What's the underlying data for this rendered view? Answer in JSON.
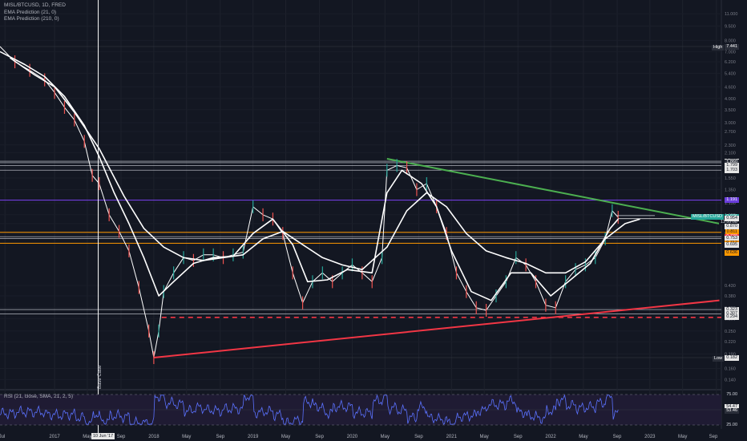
{
  "legend": {
    "symbol": "MISL/BTCUSD, 1D, FRED",
    "ema1": "EMA Prediction (21, 0)",
    "ema2": "EMA Prediction (210, 0)"
  },
  "rsi_legend": "RSI (21, close, SMA, 21, 2, 5)",
  "annotation": "Base Case",
  "crosshair_date": "10 Jun '17",
  "labels": {
    "high_side": "High",
    "low_side": "Low",
    "symbol_side": "MISL/BTCUSD",
    "countdown": "11:35:08"
  },
  "colors": {
    "background": "#131722",
    "price": "#ffffff",
    "green_trend": "#4caf50",
    "red_trend": "#f23645",
    "purple_level": "#7b42f5",
    "orange_level": "#ff9800",
    "rsi_line": "#5b72ff"
  },
  "chart_data": [
    {
      "type": "line",
      "scale": "log",
      "x_axis_ticks": [
        "Jul",
        "2017",
        "May",
        "Sep",
        "2018",
        "May",
        "Sep",
        "2019",
        "May",
        "Sep",
        "2020",
        "May",
        "Sep",
        "2021",
        "May",
        "Sep",
        "2022",
        "May",
        "Sep",
        "2023",
        "May",
        "Sep"
      ],
      "y_axis_ticks": [
        "12.500",
        "11.000",
        "9.500",
        "8.000",
        "7.000",
        "6.200",
        "5.400",
        "4.600",
        "4.000",
        "3.500",
        "3.000",
        "2.700",
        "2.300",
        "2.100",
        "1.750",
        "1.550",
        "1.350",
        "1.150",
        "1.000",
        "0.900",
        "0.800",
        "0.430",
        "0.380",
        "0.330",
        "0.290",
        "0.250",
        "0.220",
        "0.190",
        "0.160",
        "0.140"
      ],
      "price_tags": [
        {
          "label": "7.441",
          "style": "dark"
        },
        {
          "label": "1.895",
          "style": "white"
        },
        {
          "label": "1.860",
          "style": "dark"
        },
        {
          "label": "1.799",
          "style": "white"
        },
        {
          "label": "1.703",
          "style": "white"
        },
        {
          "label": "1.191",
          "style": "purple"
        },
        {
          "label": "0.976",
          "style": "teal"
        },
        {
          "label": "0.954",
          "style": "white"
        },
        {
          "label": "0.870",
          "style": "white"
        },
        {
          "label": "0.811",
          "style": "orange"
        },
        {
          "label": "0.770",
          "style": "red"
        },
        {
          "label": "0.753",
          "style": "white"
        },
        {
          "label": "0.712",
          "style": "orange"
        },
        {
          "label": "0.695",
          "style": "white"
        },
        {
          "label": "0.636",
          "style": "orange"
        },
        {
          "label": "0.323",
          "style": "white"
        },
        {
          "label": "0.307",
          "style": "white"
        },
        {
          "label": "0.294",
          "style": "white"
        },
        {
          "label": "0.182",
          "style": "white"
        }
      ],
      "series": [
        {
          "values": [
            [
              2016.45,
              7.44
            ],
            [
              2016.6,
              6.2
            ],
            [
              2016.75,
              5.6
            ],
            [
              2016.9,
              5.0
            ],
            [
              2017.0,
              4.3
            ],
            [
              2017.1,
              3.6
            ],
            [
              2017.2,
              3.1
            ],
            [
              2017.3,
              2.4
            ],
            [
              2017.38,
              1.6
            ],
            [
              2017.45,
              1.45
            ],
            [
              2017.55,
              1.0
            ],
            [
              2017.65,
              0.82
            ],
            [
              2017.75,
              0.65
            ],
            [
              2017.85,
              0.42
            ],
            [
              2017.95,
              0.25
            ],
            [
              2018.0,
              0.182
            ],
            [
              2018.05,
              0.25
            ],
            [
              2018.1,
              0.4
            ],
            [
              2018.2,
              0.5
            ],
            [
              2018.3,
              0.6
            ],
            [
              2018.4,
              0.58
            ],
            [
              2018.5,
              0.62
            ],
            [
              2018.6,
              0.62
            ],
            [
              2018.7,
              0.6
            ],
            [
              2018.8,
              0.62
            ],
            [
              2018.9,
              0.64
            ],
            [
              2019.0,
              1.1
            ],
            [
              2019.1,
              1.0
            ],
            [
              2019.2,
              0.95
            ],
            [
              2019.3,
              0.8
            ],
            [
              2019.4,
              0.5
            ],
            [
              2019.5,
              0.35
            ],
            [
              2019.6,
              0.45
            ],
            [
              2019.7,
              0.5
            ],
            [
              2019.8,
              0.45
            ],
            [
              2019.9,
              0.5
            ],
            [
              2020.0,
              0.55
            ],
            [
              2020.1,
              0.5
            ],
            [
              2020.2,
              0.45
            ],
            [
              2020.3,
              0.6
            ],
            [
              2020.35,
              1.7
            ],
            [
              2020.45,
              1.8
            ],
            [
              2020.55,
              1.75
            ],
            [
              2020.65,
              1.35
            ],
            [
              2020.75,
              1.45
            ],
            [
              2020.85,
              1.1
            ],
            [
              2020.95,
              0.8
            ],
            [
              2021.05,
              0.5
            ],
            [
              2021.15,
              0.4
            ],
            [
              2021.25,
              0.33
            ],
            [
              2021.35,
              0.32
            ],
            [
              2021.45,
              0.38
            ],
            [
              2021.55,
              0.45
            ],
            [
              2021.65,
              0.6
            ],
            [
              2021.75,
              0.55
            ],
            [
              2021.85,
              0.45
            ],
            [
              2021.95,
              0.34
            ],
            [
              2022.05,
              0.33
            ],
            [
              2022.15,
              0.45
            ],
            [
              2022.25,
              0.52
            ],
            [
              2022.35,
              0.55
            ],
            [
              2022.45,
              0.6
            ],
            [
              2022.55,
              0.75
            ],
            [
              2022.62,
              1.05
            ],
            [
              2022.68,
              0.97
            ]
          ]
        },
        {
          "name": "EMA Prediction (21, 0)",
          "values": [
            [
              2016.45,
              7.0
            ],
            [
              2016.7,
              6.0
            ],
            [
              2016.9,
              5.2
            ],
            [
              2017.1,
              4.1
            ],
            [
              2017.3,
              2.9
            ],
            [
              2017.45,
              2.0
            ],
            [
              2017.6,
              1.3
            ],
            [
              2017.75,
              0.9
            ],
            [
              2017.9,
              0.6
            ],
            [
              2018.05,
              0.38
            ],
            [
              2018.2,
              0.45
            ],
            [
              2018.4,
              0.56
            ],
            [
              2018.6,
              0.6
            ],
            [
              2018.8,
              0.61
            ],
            [
              2019.0,
              0.8
            ],
            [
              2019.2,
              0.95
            ],
            [
              2019.4,
              0.7
            ],
            [
              2019.55,
              0.45
            ],
            [
              2019.75,
              0.46
            ],
            [
              2019.95,
              0.52
            ],
            [
              2020.2,
              0.5
            ],
            [
              2020.35,
              1.3
            ],
            [
              2020.5,
              1.7
            ],
            [
              2020.7,
              1.45
            ],
            [
              2020.85,
              1.1
            ],
            [
              2021.0,
              0.65
            ],
            [
              2021.2,
              0.4
            ],
            [
              2021.4,
              0.36
            ],
            [
              2021.6,
              0.5
            ],
            [
              2021.8,
              0.5
            ],
            [
              2022.0,
              0.38
            ],
            [
              2022.2,
              0.46
            ],
            [
              2022.4,
              0.56
            ],
            [
              2022.6,
              0.85
            ],
            [
              2022.68,
              0.95
            ]
          ]
        },
        {
          "name": "EMA Prediction (210, 0)",
          "values": [
            [
              2016.55,
              6.5
            ],
            [
              2016.8,
              5.3
            ],
            [
              2017.0,
              4.6
            ],
            [
              2017.2,
              3.4
            ],
            [
              2017.45,
              2.2
            ],
            [
              2017.7,
              1.25
            ],
            [
              2017.9,
              0.85
            ],
            [
              2018.1,
              0.68
            ],
            [
              2018.3,
              0.6
            ],
            [
              2018.5,
              0.58
            ],
            [
              2018.7,
              0.6
            ],
            [
              2018.9,
              0.62
            ],
            [
              2019.1,
              0.75
            ],
            [
              2019.3,
              0.82
            ],
            [
              2019.5,
              0.7
            ],
            [
              2019.7,
              0.6
            ],
            [
              2019.9,
              0.55
            ],
            [
              2020.1,
              0.52
            ],
            [
              2020.35,
              0.68
            ],
            [
              2020.55,
              1.05
            ],
            [
              2020.75,
              1.3
            ],
            [
              2020.95,
              1.1
            ],
            [
              2021.15,
              0.8
            ],
            [
              2021.35,
              0.65
            ],
            [
              2021.55,
              0.6
            ],
            [
              2021.75,
              0.56
            ],
            [
              2021.95,
              0.5
            ],
            [
              2022.15,
              0.5
            ],
            [
              2022.35,
              0.57
            ],
            [
              2022.55,
              0.75
            ],
            [
              2022.75,
              0.9
            ],
            [
              2022.9,
              0.95
            ]
          ]
        }
      ],
      "trendlines": [
        {
          "color": "green",
          "from": [
            2020.35,
            1.95
          ],
          "to": [
            2023.7,
            0.9
          ]
        },
        {
          "color": "red",
          "from": [
            2018.0,
            0.182
          ],
          "to": [
            2023.7,
            0.36
          ]
        }
      ],
      "levels": [
        {
          "value": 1.895,
          "color": "white"
        },
        {
          "value": 1.86,
          "color": "white"
        },
        {
          "value": 1.799,
          "color": "white"
        },
        {
          "value": 1.703,
          "color": "white"
        },
        {
          "value": 1.191,
          "color": "purple"
        },
        {
          "value": 0.811,
          "color": "orange"
        },
        {
          "value": 0.77,
          "color": "white"
        },
        {
          "value": 0.753,
          "color": "white"
        },
        {
          "value": 0.712,
          "color": "orange"
        },
        {
          "value": 0.323,
          "color": "white"
        },
        {
          "value": 0.307,
          "color": "white"
        }
      ],
      "dashed_level": 0.294,
      "high": 7.441,
      "low": 0.182
    },
    {
      "type": "line",
      "title": "RSI (21, close, SMA, 21, 2, 5)",
      "y_axis_ticks": [
        "75.00",
        "54.47",
        "53.46",
        "25.00"
      ],
      "current_values": [
        "54.47",
        "53.46"
      ],
      "ylim": [
        25,
        75
      ]
    }
  ]
}
